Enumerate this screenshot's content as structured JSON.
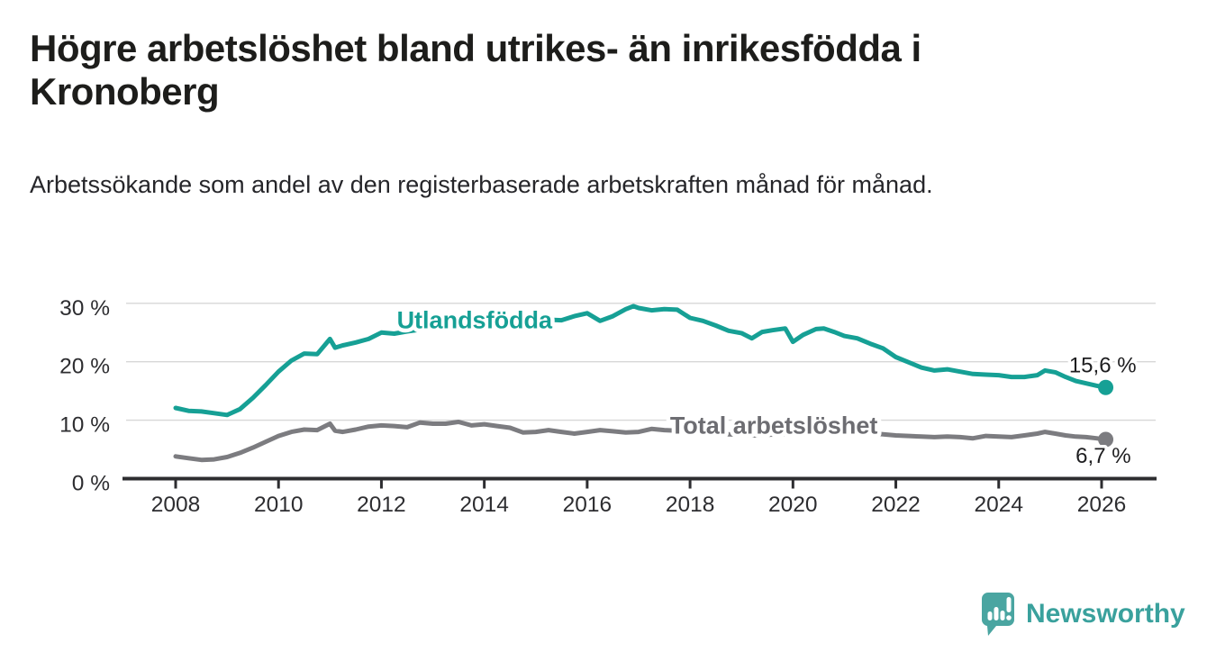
{
  "header": {
    "title": "Högre arbetslöshet bland utrikes- än inrikesfödda i Kronoberg",
    "subtitle": "Arbetssökande som andel av den registerbaserade arbetskraften månad för månad."
  },
  "footer": {
    "brand": "Newsworthy",
    "logo_icon": "bar-chart-speech-bubble-icon"
  },
  "colors": {
    "accent_teal": "#16a095",
    "line_gray": "#7c7c80",
    "gray_label": "#6d6d72",
    "axis": "#2d2d30",
    "grid": "#d7d7d7",
    "text": "#1d1d1b",
    "logo_teal": "#4aa5a1"
  },
  "chart_data": {
    "type": "line",
    "title": "Högre arbetslöshet bland utrikes- än inrikesfödda i Kronoberg",
    "subtitle": "Arbetssökande som andel av den registerbaserade arbetskraften månad för månad.",
    "unit": "%",
    "grid": true,
    "legend": "inline-labels",
    "x_axis": {
      "range": [
        2007.0,
        2027.1
      ],
      "ticks": [
        2008,
        2010,
        2012,
        2014,
        2016,
        2018,
        2020,
        2022,
        2024,
        2026
      ]
    },
    "y_axis": {
      "range": [
        0,
        31
      ],
      "ticks": [
        {
          "value": 0,
          "label": "0 %"
        },
        {
          "value": 10,
          "label": "10 %"
        },
        {
          "value": 20,
          "label": "20 %"
        },
        {
          "value": 30,
          "label": "30 %"
        }
      ]
    },
    "series": [
      {
        "id": "utlandsfodda",
        "name": "Utlandsfödda",
        "color": "#16a095",
        "label_color": "#16a095",
        "end_label": "15,6 %",
        "last_value": 15.6,
        "label_anchor": {
          "x": 2012.3,
          "y": 25.7
        },
        "points": [
          [
            2008.0,
            12.1
          ],
          [
            2008.25,
            11.6
          ],
          [
            2008.5,
            11.5
          ],
          [
            2008.75,
            11.2
          ],
          [
            2009.0,
            10.9
          ],
          [
            2009.25,
            11.9
          ],
          [
            2009.5,
            13.8
          ],
          [
            2009.75,
            16.0
          ],
          [
            2010.0,
            18.3
          ],
          [
            2010.25,
            20.2
          ],
          [
            2010.5,
            21.4
          ],
          [
            2010.75,
            21.3
          ],
          [
            2011.0,
            23.9
          ],
          [
            2011.1,
            22.4
          ],
          [
            2011.25,
            22.8
          ],
          [
            2011.5,
            23.3
          ],
          [
            2011.75,
            23.9
          ],
          [
            2012.0,
            25.0
          ],
          [
            2012.25,
            24.8
          ],
          [
            2012.5,
            25.2
          ],
          [
            2012.75,
            25.5
          ],
          [
            2013.0,
            25.8
          ],
          [
            2013.25,
            26.0
          ],
          [
            2013.5,
            26.2
          ],
          [
            2013.75,
            26.1
          ],
          [
            2014.0,
            26.4
          ],
          [
            2014.25,
            26.6
          ],
          [
            2014.5,
            26.5
          ],
          [
            2014.75,
            26.8
          ],
          [
            2015.0,
            27.0
          ],
          [
            2015.25,
            27.2
          ],
          [
            2015.5,
            27.1
          ],
          [
            2015.75,
            27.8
          ],
          [
            2016.0,
            28.3
          ],
          [
            2016.25,
            27.0
          ],
          [
            2016.5,
            27.8
          ],
          [
            2016.75,
            29.0
          ],
          [
            2016.9,
            29.5
          ],
          [
            2017.0,
            29.2
          ],
          [
            2017.25,
            28.8
          ],
          [
            2017.5,
            29.0
          ],
          [
            2017.75,
            28.9
          ],
          [
            2018.0,
            27.5
          ],
          [
            2018.25,
            27.0
          ],
          [
            2018.5,
            26.2
          ],
          [
            2018.75,
            25.3
          ],
          [
            2019.0,
            24.9
          ],
          [
            2019.2,
            24.0
          ],
          [
            2019.4,
            25.1
          ],
          [
            2019.6,
            25.4
          ],
          [
            2019.85,
            25.7
          ],
          [
            2020.0,
            23.4
          ],
          [
            2020.2,
            24.6
          ],
          [
            2020.45,
            25.6
          ],
          [
            2020.6,
            25.7
          ],
          [
            2020.8,
            25.1
          ],
          [
            2021.0,
            24.4
          ],
          [
            2021.25,
            24.0
          ],
          [
            2021.5,
            23.1
          ],
          [
            2021.75,
            22.3
          ],
          [
            2022.0,
            20.8
          ],
          [
            2022.25,
            19.9
          ],
          [
            2022.5,
            19.0
          ],
          [
            2022.75,
            18.5
          ],
          [
            2023.0,
            18.7
          ],
          [
            2023.25,
            18.3
          ],
          [
            2023.5,
            17.9
          ],
          [
            2023.75,
            17.8
          ],
          [
            2024.0,
            17.7
          ],
          [
            2024.25,
            17.4
          ],
          [
            2024.5,
            17.4
          ],
          [
            2024.75,
            17.7
          ],
          [
            2024.9,
            18.5
          ],
          [
            2025.1,
            18.2
          ],
          [
            2025.3,
            17.4
          ],
          [
            2025.5,
            16.7
          ],
          [
            2025.7,
            16.3
          ],
          [
            2025.9,
            15.9
          ],
          [
            2026.08,
            15.6
          ]
        ]
      },
      {
        "id": "total-arbetsloshet",
        "name": "Total arbetslöshet",
        "color": "#7c7c80",
        "label_color": "#6d6d72",
        "end_label": "6,7 %",
        "last_value": 6.7,
        "label_anchor": {
          "x": 2017.61,
          "y": 7.7
        },
        "points": [
          [
            2008.0,
            3.8
          ],
          [
            2008.25,
            3.5
          ],
          [
            2008.5,
            3.2
          ],
          [
            2008.75,
            3.3
          ],
          [
            2009.0,
            3.7
          ],
          [
            2009.25,
            4.4
          ],
          [
            2009.5,
            5.3
          ],
          [
            2009.75,
            6.3
          ],
          [
            2010.0,
            7.3
          ],
          [
            2010.25,
            8.0
          ],
          [
            2010.5,
            8.4
          ],
          [
            2010.75,
            8.3
          ],
          [
            2011.0,
            9.4
          ],
          [
            2011.1,
            8.2
          ],
          [
            2011.25,
            8.0
          ],
          [
            2011.5,
            8.4
          ],
          [
            2011.75,
            8.9
          ],
          [
            2012.0,
            9.1
          ],
          [
            2012.25,
            9.0
          ],
          [
            2012.5,
            8.8
          ],
          [
            2012.75,
            9.6
          ],
          [
            2013.0,
            9.4
          ],
          [
            2013.25,
            9.4
          ],
          [
            2013.5,
            9.7
          ],
          [
            2013.75,
            9.1
          ],
          [
            2014.0,
            9.3
          ],
          [
            2014.25,
            9.0
          ],
          [
            2014.5,
            8.7
          ],
          [
            2014.75,
            7.9
          ],
          [
            2015.0,
            8.0
          ],
          [
            2015.25,
            8.3
          ],
          [
            2015.5,
            8.0
          ],
          [
            2015.75,
            7.7
          ],
          [
            2016.0,
            8.0
          ],
          [
            2016.25,
            8.3
          ],
          [
            2016.5,
            8.1
          ],
          [
            2016.75,
            7.9
          ],
          [
            2017.0,
            8.0
          ],
          [
            2017.25,
            8.5
          ],
          [
            2017.5,
            8.3
          ],
          [
            2017.75,
            8.2
          ],
          [
            2018.0,
            8.0
          ],
          [
            2018.25,
            7.8
          ],
          [
            2018.5,
            7.7
          ],
          [
            2018.75,
            7.6
          ],
          [
            2019.0,
            7.5
          ],
          [
            2019.25,
            7.4
          ],
          [
            2019.5,
            7.5
          ],
          [
            2019.75,
            7.6
          ],
          [
            2020.0,
            7.8
          ],
          [
            2020.25,
            8.4
          ],
          [
            2020.5,
            8.7
          ],
          [
            2020.75,
            8.5
          ],
          [
            2021.0,
            8.3
          ],
          [
            2021.25,
            8.0
          ],
          [
            2021.5,
            7.8
          ],
          [
            2021.75,
            7.6
          ],
          [
            2022.0,
            7.4
          ],
          [
            2022.25,
            7.3
          ],
          [
            2022.5,
            7.2
          ],
          [
            2022.75,
            7.1
          ],
          [
            2023.0,
            7.2
          ],
          [
            2023.25,
            7.1
          ],
          [
            2023.5,
            6.9
          ],
          [
            2023.75,
            7.3
          ],
          [
            2024.0,
            7.2
          ],
          [
            2024.25,
            7.1
          ],
          [
            2024.5,
            7.4
          ],
          [
            2024.75,
            7.7
          ],
          [
            2024.9,
            8.0
          ],
          [
            2025.1,
            7.7
          ],
          [
            2025.3,
            7.4
          ],
          [
            2025.5,
            7.2
          ],
          [
            2025.7,
            7.1
          ],
          [
            2025.9,
            6.9
          ],
          [
            2026.08,
            6.7
          ]
        ]
      }
    ]
  }
}
